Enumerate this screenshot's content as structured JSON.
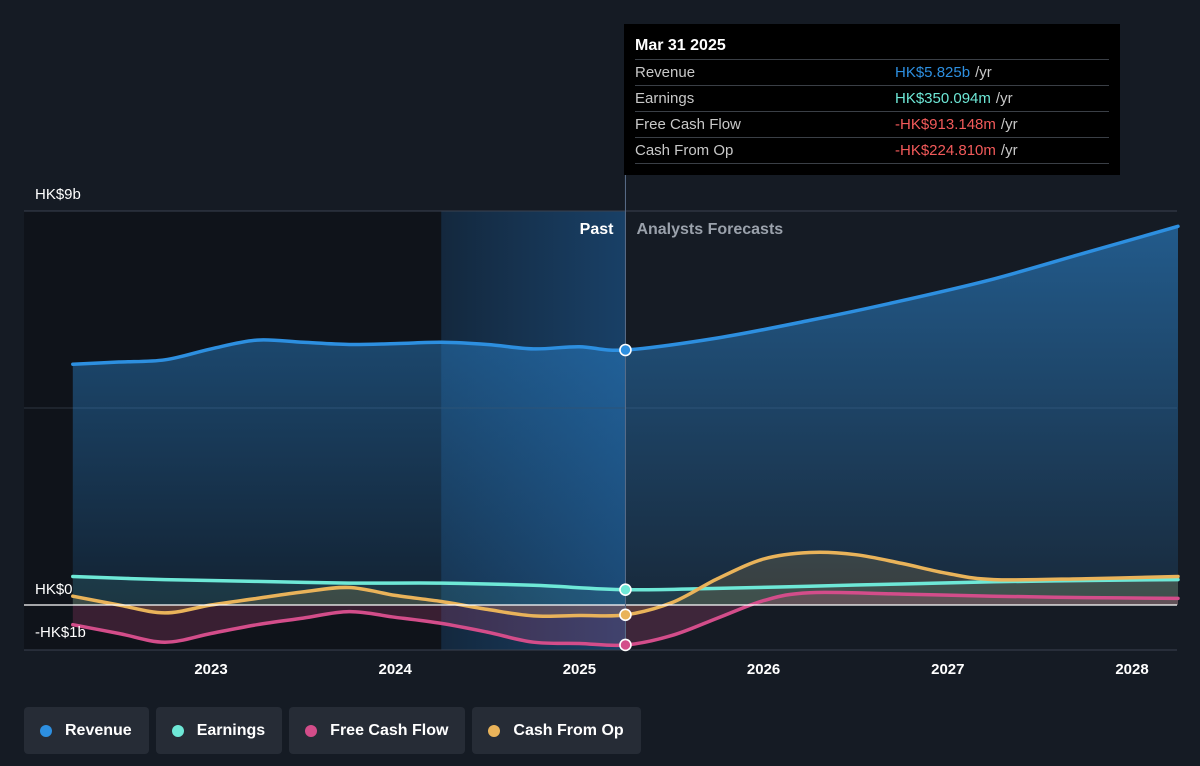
{
  "tooltip": {
    "date": "Mar 31 2025",
    "rows": [
      {
        "label": "Revenue",
        "value": "HK$5.825b",
        "unit": "/yr",
        "color": "#2d8fe0"
      },
      {
        "label": "Earnings",
        "value": "HK$350.094m",
        "unit": "/yr",
        "color": "#6ee8d7"
      },
      {
        "label": "Free Cash Flow",
        "value": "-HK$913.148m",
        "unit": "/yr",
        "color": "#f25a5a"
      },
      {
        "label": "Cash From Op",
        "value": "-HK$224.810m",
        "unit": "/yr",
        "color": "#f25a5a"
      }
    ]
  },
  "legend": [
    {
      "label": "Revenue",
      "color": "#2d8fe0"
    },
    {
      "label": "Earnings",
      "color": "#6ee8d7"
    },
    {
      "label": "Free Cash Flow",
      "color": "#d34d8a"
    },
    {
      "label": "Cash From Op",
      "color": "#e9b35a"
    }
  ],
  "chart_data": {
    "type": "line",
    "title": "",
    "y_labels": [
      "HK$9b",
      "HK$0",
      "-HK$1b"
    ],
    "past_label": "Past",
    "forecast_label": "Analysts Forecasts",
    "x_ticks": [
      "2023",
      "2024",
      "2025",
      "2026",
      "2027",
      "2028"
    ],
    "ylim": [
      -1,
      9
    ],
    "now_x": 2025.25,
    "past_band_start": 2024.25,
    "grid": true,
    "legend_position": "bottom-left",
    "series": [
      {
        "name": "Revenue",
        "color": "#2d8fe0",
        "x": [
          2022.25,
          2022.5,
          2022.75,
          2023.0,
          2023.25,
          2023.5,
          2023.75,
          2024.0,
          2024.25,
          2024.5,
          2024.75,
          2025.0,
          2025.25,
          2025.75,
          2026.25,
          2026.75,
          2027.25,
          2027.75,
          2028.25
        ],
        "y": [
          5.5,
          5.55,
          5.6,
          5.85,
          6.05,
          6.0,
          5.95,
          5.97,
          6.0,
          5.95,
          5.85,
          5.9,
          5.825,
          6.1,
          6.5,
          6.95,
          7.45,
          8.05,
          8.65
        ],
        "highlight_index": 12
      },
      {
        "name": "Earnings",
        "color": "#6ee8d7",
        "x": [
          2022.25,
          2022.75,
          2023.25,
          2023.75,
          2024.25,
          2024.75,
          2025.25,
          2025.75,
          2026.25,
          2026.75,
          2027.25,
          2027.75,
          2028.25
        ],
        "y": [
          0.65,
          0.58,
          0.54,
          0.5,
          0.5,
          0.45,
          0.35,
          0.38,
          0.43,
          0.48,
          0.53,
          0.56,
          0.58
        ],
        "highlight_index": 6
      },
      {
        "name": "Free Cash Flow",
        "color": "#d34d8a",
        "x": [
          2022.25,
          2022.5,
          2022.75,
          2023.0,
          2023.25,
          2023.5,
          2023.75,
          2024.0,
          2024.25,
          2024.5,
          2024.75,
          2025.0,
          2025.25,
          2025.5,
          2025.75,
          2026.0,
          2026.25,
          2026.75,
          2027.25,
          2027.75,
          2028.25
        ],
        "y": [
          -0.45,
          -0.65,
          -0.85,
          -0.65,
          -0.45,
          -0.3,
          -0.15,
          -0.28,
          -0.42,
          -0.62,
          -0.85,
          -0.88,
          -0.913,
          -0.7,
          -0.3,
          0.1,
          0.28,
          0.25,
          0.2,
          0.17,
          0.15
        ],
        "highlight_index": 12
      },
      {
        "name": "Cash From Op",
        "color": "#e9b35a",
        "x": [
          2022.25,
          2022.5,
          2022.75,
          2023.0,
          2023.25,
          2023.5,
          2023.75,
          2024.0,
          2024.25,
          2024.5,
          2024.75,
          2025.0,
          2025.25,
          2025.5,
          2025.75,
          2026.0,
          2026.25,
          2026.5,
          2026.75,
          2027.0,
          2027.25,
          2027.75,
          2028.25
        ],
        "y": [
          0.2,
          0.0,
          -0.18,
          0.0,
          0.15,
          0.3,
          0.4,
          0.22,
          0.08,
          -0.1,
          -0.25,
          -0.24,
          -0.225,
          0.05,
          0.6,
          1.05,
          1.2,
          1.15,
          0.95,
          0.72,
          0.58,
          0.6,
          0.65
        ],
        "highlight_index": 12
      }
    ]
  }
}
